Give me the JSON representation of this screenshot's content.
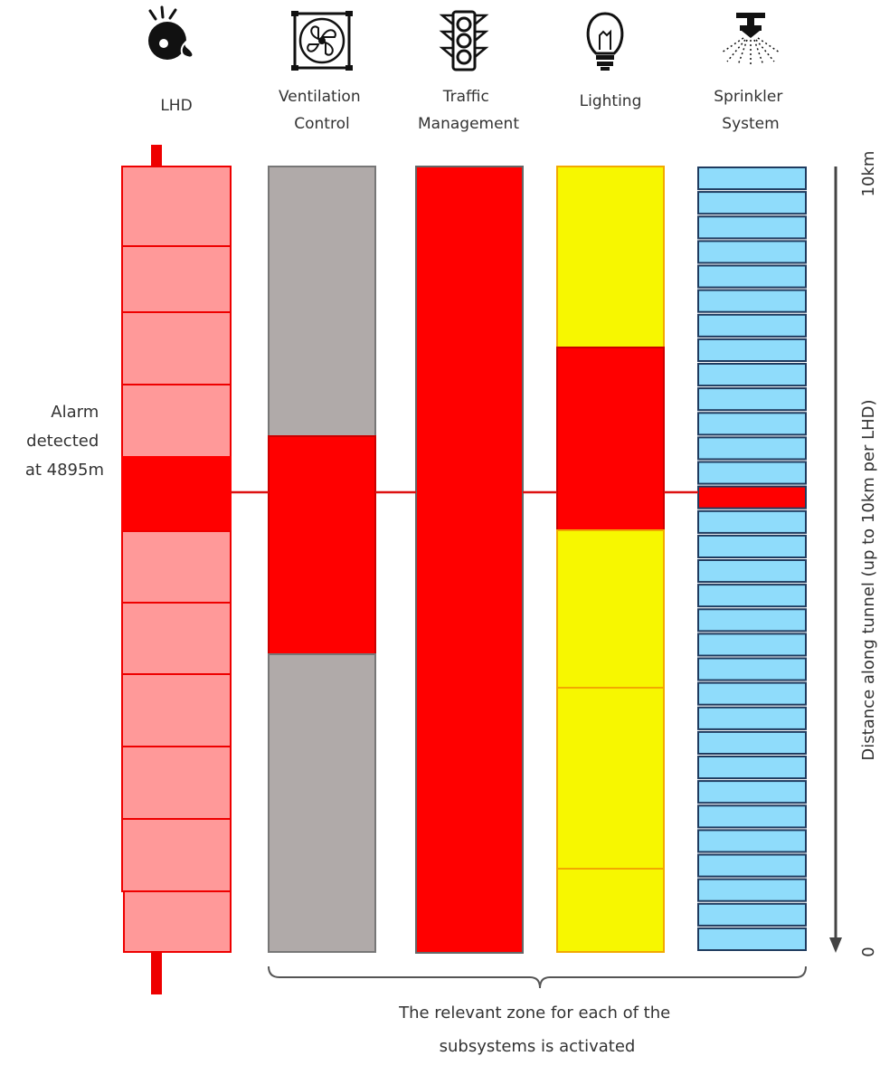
{
  "subsystems": [
    {
      "key": "lhd",
      "label_lines": [
        "LHD"
      ],
      "icon": "lhd-fire-detector-icon"
    },
    {
      "key": "ventilation",
      "label_lines": [
        "Ventilation",
        "Control"
      ],
      "icon": "fan-icon"
    },
    {
      "key": "traffic",
      "label_lines": [
        "Traffic",
        "Management"
      ],
      "icon": "traffic-light-icon"
    },
    {
      "key": "lighting",
      "label_lines": [
        "Lighting"
      ],
      "icon": "light-bulb-icon"
    },
    {
      "key": "sprinkler",
      "label_lines": [
        "Sprinkler",
        "System"
      ],
      "icon": "sprinkler-icon"
    }
  ],
  "alarm": {
    "lines": [
      "Alarm",
      "detected",
      "at 4895m"
    ],
    "position_m": 4895
  },
  "axis": {
    "label": "Distance along tunnel (up to 10km per LHD)",
    "max_label": "10km",
    "min_label": "0"
  },
  "footer": {
    "lines": [
      "The relevant zone for each of the",
      "subsystems is activated"
    ]
  },
  "colors": {
    "lhd_zone": "#ff9999",
    "lhd_border": "#ee0000",
    "active": "#ff0000",
    "ventilation_zone": "#b0aaa9",
    "lighting_zone": "#f7f700",
    "lighting_border": "#f2a900",
    "sprinkler_zone": "#8fdcfb",
    "sprinkler_border": "#1f3b5f",
    "alarm_line": "#dd1111"
  }
}
